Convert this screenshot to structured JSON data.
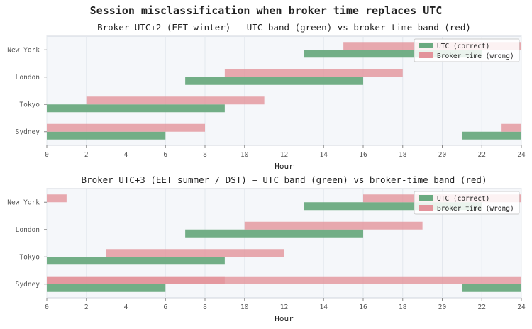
{
  "figure": {
    "title": "Session misclassification when broker time replaces UTC"
  },
  "colors": {
    "utc": "#6aaa80",
    "broker": "#e3939b",
    "overlap": "#d9646e",
    "axes_bg": "#f5f7fa",
    "grid": "#e4e8ee"
  },
  "chart_data": [
    {
      "type": "bar",
      "orientation": "horizontal-range",
      "title": "Broker UTC+2 (EET winter)  —  UTC band (green) vs broker-time band (red)",
      "xlabel": "Hour",
      "ylabel": "",
      "xlim": [
        0,
        24
      ],
      "xticks": [
        0,
        2,
        4,
        6,
        8,
        10,
        12,
        14,
        16,
        18,
        20,
        22,
        24
      ],
      "categories": [
        "Sydney",
        "Tokyo",
        "London",
        "New York"
      ],
      "legend": {
        "position": "top-right",
        "entries": [
          "UTC (correct)",
          "Broker time (wrong)"
        ]
      },
      "grid": true,
      "series": [
        {
          "name": "UTC (correct)",
          "ranges": {
            "Sydney": [
              [
                0,
                6
              ],
              [
                21,
                24
              ]
            ],
            "Tokyo": [
              [
                0,
                9
              ]
            ],
            "London": [
              [
                7,
                16
              ]
            ],
            "New York": [
              [
                13,
                22
              ]
            ]
          }
        },
        {
          "name": "Broker time (wrong)",
          "ranges": {
            "Sydney": [
              [
                0,
                8
              ],
              [
                23,
                24
              ]
            ],
            "Tokyo": [
              [
                2,
                11
              ]
            ],
            "London": [
              [
                9,
                18
              ]
            ],
            "New York": [
              [
                15,
                24
              ]
            ]
          }
        }
      ]
    },
    {
      "type": "bar",
      "orientation": "horizontal-range",
      "title": "Broker UTC+3 (EET summer / DST)  —  UTC band (green) vs broker-time band (red)",
      "xlabel": "Hour",
      "ylabel": "",
      "xlim": [
        0,
        24
      ],
      "xticks": [
        0,
        2,
        4,
        6,
        8,
        10,
        12,
        14,
        16,
        18,
        20,
        22,
        24
      ],
      "categories": [
        "Sydney",
        "Tokyo",
        "London",
        "New York"
      ],
      "legend": {
        "position": "top-right",
        "entries": [
          "UTC (correct)",
          "Broker time (wrong)"
        ]
      },
      "grid": true,
      "series": [
        {
          "name": "UTC (correct)",
          "ranges": {
            "Sydney": [
              [
                0,
                6
              ],
              [
                21,
                24
              ]
            ],
            "Tokyo": [
              [
                0,
                9
              ]
            ],
            "London": [
              [
                7,
                16
              ]
            ],
            "New York": [
              [
                13,
                22
              ]
            ]
          }
        },
        {
          "name": "Broker time (wrong)",
          "ranges": {
            "Sydney": [
              [
                0,
                9
              ],
              [
                0,
                24
              ]
            ],
            "Tokyo": [
              [
                3,
                12
              ]
            ],
            "London": [
              [
                10,
                19
              ]
            ],
            "New York": [
              [
                16,
                24
              ],
              [
                0,
                1
              ]
            ]
          }
        }
      ]
    }
  ]
}
